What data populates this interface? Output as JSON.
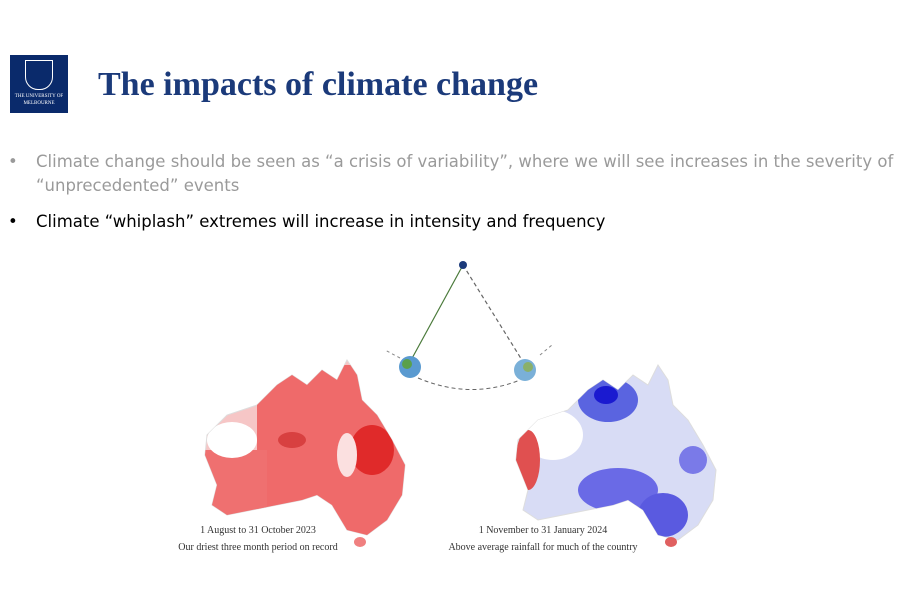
{
  "logo": {
    "line1": "THE UNIVERSITY OF",
    "line2": "MELBOURNE"
  },
  "header": {
    "title": "The impacts of climate change"
  },
  "bullets": [
    "Climate change should be seen as “a crisis of variability”, where we will see increases in the severity of “unprecedented” events",
    "Climate “whiplash” extremes will increase in intensity and frequency"
  ],
  "maps": [
    {
      "date": "1 August to 31 October 2023",
      "caption": "Our driest three month period on record"
    },
    {
      "date": "1 November to 31 January 2024",
      "caption": "Above average rainfall for much of the country"
    }
  ]
}
